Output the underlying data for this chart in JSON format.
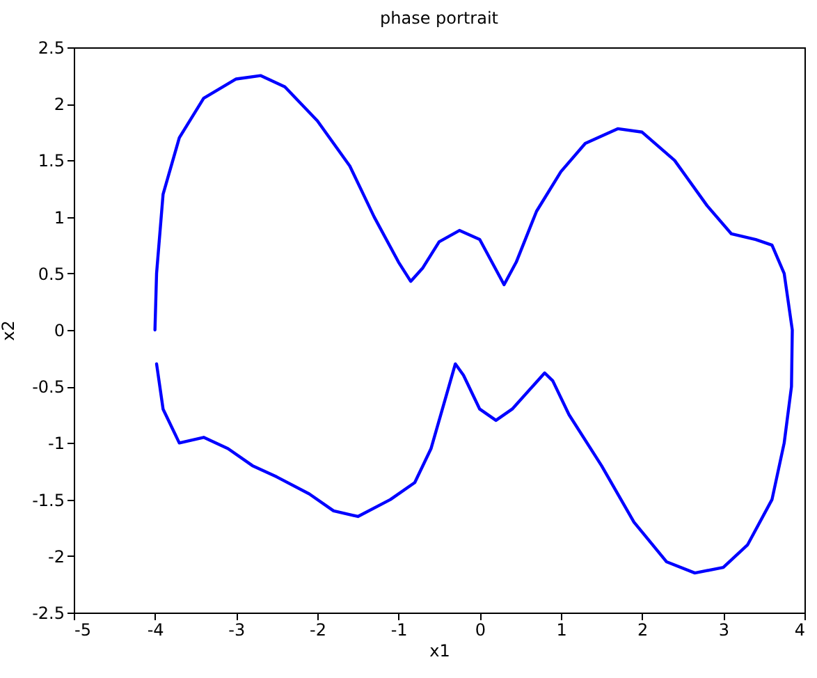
{
  "chart_data": {
    "type": "line",
    "title": "phase portrait",
    "xlabel": "x1",
    "ylabel": "x2",
    "xlim": [
      -5,
      4
    ],
    "xticks": [
      -5,
      -4,
      -3,
      -2,
      -1,
      0,
      1,
      2,
      3,
      4
    ],
    "ylim": [
      -2.5,
      2.5
    ],
    "yticks": [
      -2.5,
      -2,
      -1.5,
      -1,
      -0.5,
      0,
      0.5,
      1,
      1.5,
      2,
      2.5
    ],
    "grid": false,
    "marker": "none",
    "line_style": "solid",
    "series": [
      {
        "color": "#0000ff",
        "x": [
          -4,
          -3.98,
          -3.9,
          -3.7,
          -3.4,
          -3.0,
          -2.7,
          -2.4,
          -2.0,
          -1.6,
          -1.3,
          -1.0,
          -0.85,
          -0.7,
          -0.5,
          -0.25,
          0,
          0.15,
          0.3,
          0.45,
          0.7,
          1.0,
          1.3,
          1.7,
          2.0,
          2.4,
          2.8,
          3.1,
          3.4,
          3.6,
          3.75,
          3.85,
          3.84,
          3.75,
          3.6,
          3.3,
          3.0,
          2.65,
          2.3,
          1.9,
          1.5,
          1.1,
          0.9,
          0.8,
          0.65,
          0.4,
          0.2,
          0,
          -0.2,
          -0.3,
          -0.4,
          -0.6,
          -0.8,
          -1.1,
          -1.5,
          -1.8,
          -2.1,
          -2.5,
          -2.8,
          -3.1,
          -3.4,
          -3.7,
          -3.9,
          -3.98
        ],
        "values": [
          0,
          0.5,
          1.2,
          1.7,
          2.05,
          2.22,
          2.25,
          2.15,
          1.85,
          1.45,
          1.0,
          0.6,
          0.43,
          0.55,
          0.78,
          0.88,
          0.8,
          0.6,
          0.4,
          0.6,
          1.05,
          1.4,
          1.65,
          1.78,
          1.75,
          1.5,
          1.1,
          0.85,
          0.8,
          0.75,
          0.5,
          0,
          -0.5,
          -1.0,
          -1.5,
          -1.9,
          -2.1,
          -2.15,
          -2.05,
          -1.7,
          -1.2,
          -0.75,
          -0.45,
          -0.38,
          -0.5,
          -0.7,
          -0.8,
          -0.7,
          -0.4,
          -0.3,
          -0.55,
          -1.05,
          -1.35,
          -1.5,
          -1.65,
          -1.6,
          -1.45,
          -1.3,
          -1.2,
          -1.05,
          -0.95,
          -1.0,
          -0.7,
          -0.3
        ]
      }
    ]
  }
}
